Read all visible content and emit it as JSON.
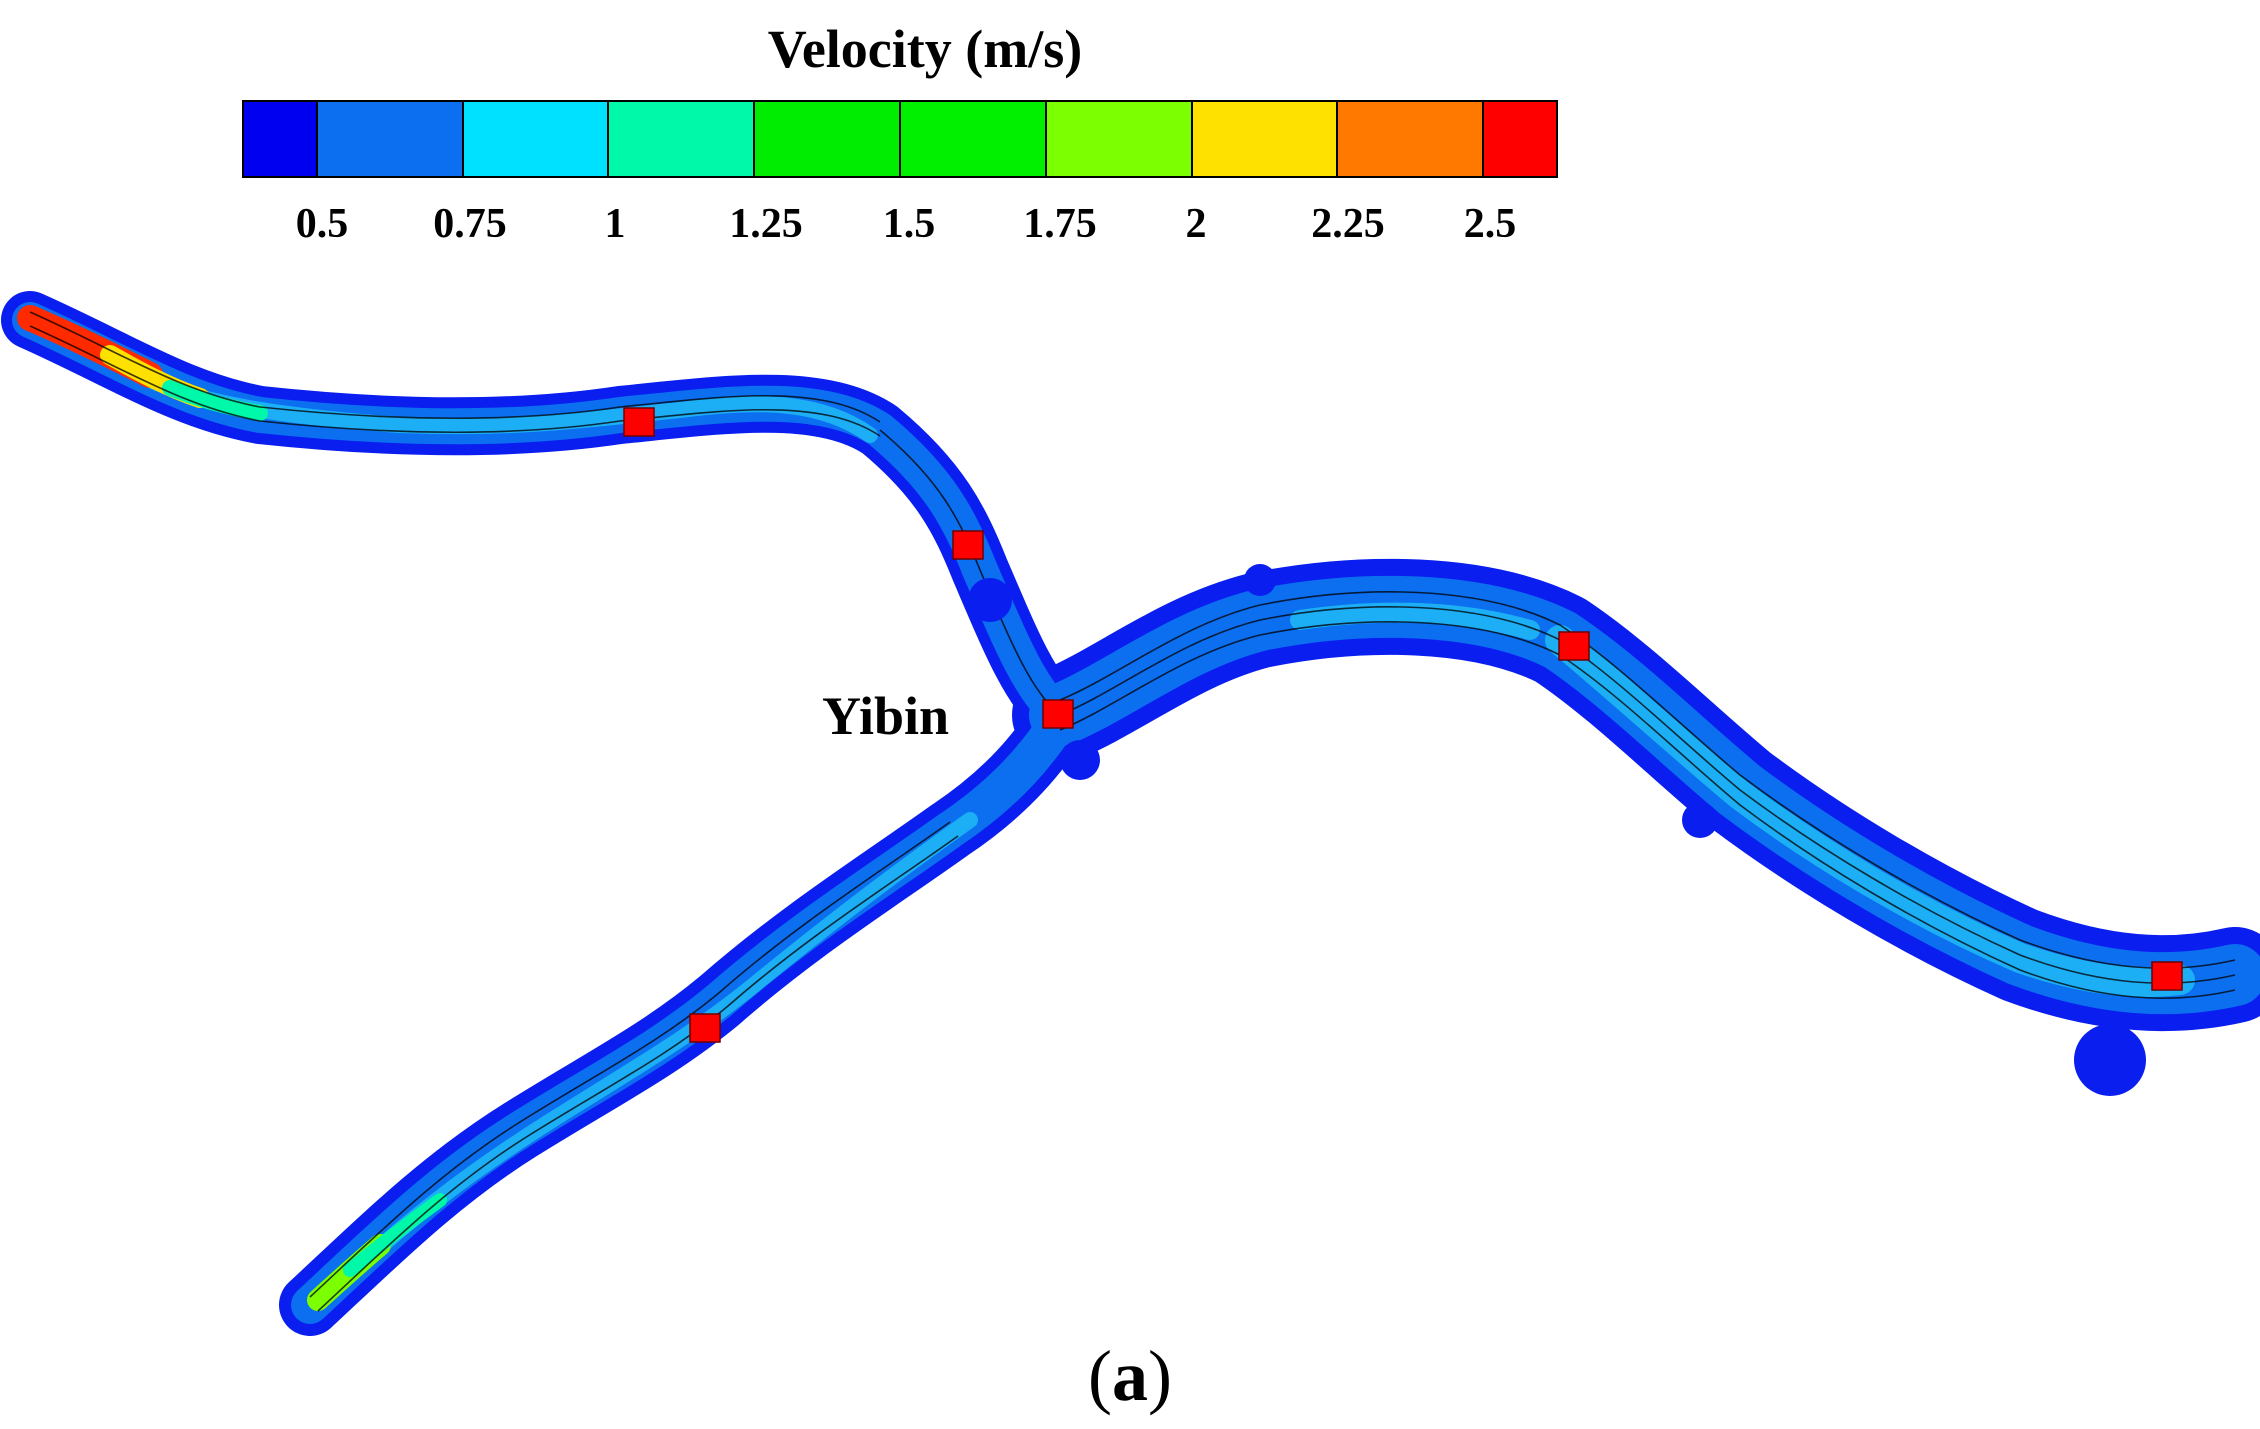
{
  "legend": {
    "title": "Velocity (m/s)",
    "colors": [
      "#0000f0",
      "#0b6ff0",
      "#00e1ff",
      "#00f9a8",
      "#00ec00",
      "#00f000",
      "#7cff00",
      "#ffe100",
      "#ff7800",
      "#ff0000"
    ],
    "ticks": [
      "0.5",
      "0.75",
      "1",
      "1.25",
      "1.5",
      "1.75",
      "2",
      "2.25",
      "2.5"
    ]
  },
  "map": {
    "city_label": "Yibin",
    "rivers": [
      "northwest-channel",
      "southwest-channel",
      "east-channel"
    ],
    "station_count": 6
  },
  "caption": {
    "open": "(",
    "letter": "a",
    "close": ")"
  }
}
